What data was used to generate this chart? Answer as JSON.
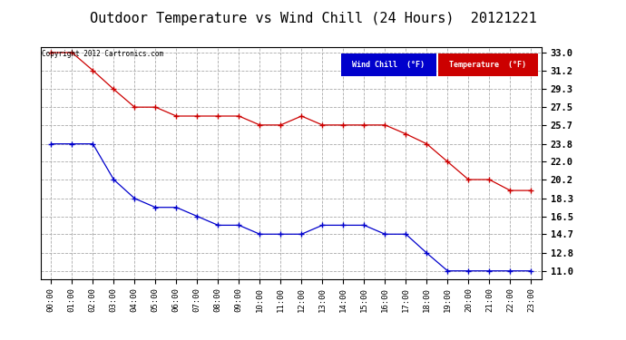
{
  "title": "Outdoor Temperature vs Wind Chill (24 Hours)  20121221",
  "copyright": "Copyright 2012 Cartronics.com",
  "x_labels": [
    "00:00",
    "01:00",
    "02:00",
    "03:00",
    "04:00",
    "05:00",
    "06:00",
    "07:00",
    "08:00",
    "09:00",
    "10:00",
    "11:00",
    "12:00",
    "13:00",
    "14:00",
    "15:00",
    "16:00",
    "17:00",
    "18:00",
    "19:00",
    "20:00",
    "21:00",
    "22:00",
    "23:00"
  ],
  "temperature": [
    33.0,
    33.0,
    31.2,
    29.3,
    27.5,
    27.5,
    26.6,
    26.6,
    26.6,
    26.6,
    25.7,
    25.7,
    26.6,
    25.7,
    25.7,
    25.7,
    25.7,
    24.8,
    23.8,
    22.0,
    20.2,
    20.2,
    19.1,
    19.1
  ],
  "wind_chill": [
    23.8,
    23.8,
    23.8,
    20.2,
    18.3,
    17.4,
    17.4,
    16.5,
    15.6,
    15.6,
    14.7,
    14.7,
    14.7,
    15.6,
    15.6,
    15.6,
    14.7,
    14.7,
    12.8,
    11.0,
    11.0,
    11.0,
    11.0,
    11.0
  ],
  "y_ticks": [
    11.0,
    12.8,
    14.7,
    16.5,
    18.3,
    20.2,
    22.0,
    23.8,
    25.7,
    27.5,
    29.3,
    31.2,
    33.0
  ],
  "temp_color": "#cc0000",
  "wind_color": "#0000cc",
  "background_color": "#ffffff",
  "grid_color": "#aaaaaa",
  "title_fontsize": 11,
  "legend_wind_label": "Wind Chill  (°F)",
  "legend_temp_label": "Temperature  (°F)",
  "wind_legend_bg": "#0000cc",
  "temp_legend_bg": "#cc0000"
}
